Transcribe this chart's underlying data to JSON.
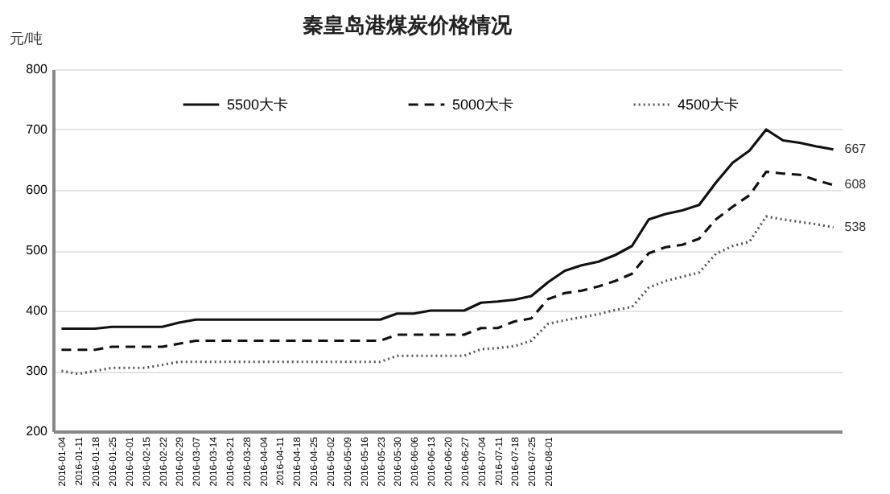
{
  "chart_data": {
    "type": "line",
    "title": "秦皇岛港煤炭价格情况",
    "ylabel": "元/吨",
    "categories": [
      "2016-01-04",
      "2016-01-11",
      "2016-01-18",
      "2016-01-25",
      "2016-02-01",
      "2016-02-15",
      "2016-02-22",
      "2016-02-29",
      "2016-03-07",
      "2016-03-14",
      "2016-03-21",
      "2016-03-28",
      "2016-04-04",
      "2016-04-11",
      "2016-04-18",
      "2016-04-25",
      "2016-05-02",
      "2016-05-09",
      "2016-05-16",
      "2016-05-23",
      "2016-05-30",
      "2016-06-06",
      "2016-06-13",
      "2016-06-20",
      "2016-06-27",
      "2016-07-04",
      "2016-07-11",
      "2016-07-18",
      "2016-07-25",
      "2016-08-01",
      null,
      null,
      null,
      null,
      null,
      null,
      null,
      null,
      null,
      null,
      null,
      null,
      null,
      null,
      null,
      null,
      null
    ],
    "series": [
      {
        "name": "5500大卡",
        "color": "#111111",
        "line_style": "solid",
        "values": [
          370,
          370,
          370,
          373,
          373,
          373,
          373,
          380,
          385,
          385,
          385,
          385,
          385,
          385,
          385,
          385,
          385,
          385,
          385,
          385,
          395,
          395,
          400,
          400,
          400,
          413,
          415,
          418,
          424,
          447,
          466,
          475,
          481,
          492,
          507,
          551,
          560,
          566,
          575,
          612,
          645,
          665,
          700,
          682,
          678,
          672,
          667
        ],
        "value_labels": [
          null,
          null,
          null,
          null,
          null,
          null,
          null,
          null,
          null,
          null,
          null,
          null,
          null,
          null,
          null,
          null,
          null,
          null,
          null,
          null,
          null,
          null,
          null,
          null,
          null,
          null,
          null,
          null,
          null,
          null,
          null,
          null,
          null,
          null,
          null,
          null,
          null,
          null,
          null,
          null,
          null,
          null,
          null,
          null,
          null,
          null,
          "667"
        ]
      },
      {
        "name": "5000大卡",
        "color": "#111111",
        "line_style": "dashed",
        "values": [
          335,
          335,
          335,
          340,
          340,
          340,
          340,
          345,
          350,
          350,
          350,
          350,
          350,
          350,
          350,
          350,
          350,
          350,
          350,
          350,
          360,
          360,
          360,
          360,
          360,
          371,
          371,
          382,
          387,
          419,
          429,
          433,
          440,
          449,
          461,
          495,
          505,
          509,
          519,
          551,
          572,
          591,
          630,
          627,
          625,
          616,
          608
        ],
        "value_labels": [
          null,
          null,
          null,
          null,
          null,
          null,
          null,
          null,
          null,
          null,
          null,
          null,
          null,
          null,
          null,
          null,
          null,
          null,
          null,
          null,
          null,
          null,
          null,
          null,
          null,
          null,
          null,
          null,
          null,
          null,
          null,
          null,
          null,
          null,
          null,
          null,
          null,
          null,
          null,
          null,
          null,
          null,
          null,
          null,
          null,
          null,
          "608"
        ]
      },
      {
        "name": "4500大卡",
        "color": "#555555",
        "line_style": "dotted",
        "values": [
          300,
          295,
          300,
          305,
          305,
          305,
          310,
          315,
          315,
          315,
          315,
          315,
          315,
          315,
          315,
          315,
          315,
          315,
          315,
          315,
          325,
          325,
          325,
          325,
          325,
          336,
          338,
          341,
          350,
          378,
          384,
          389,
          394,
          401,
          406,
          438,
          449,
          456,
          463,
          494,
          507,
          514,
          556,
          551,
          547,
          543,
          538
        ],
        "value_labels": [
          null,
          null,
          null,
          null,
          null,
          null,
          null,
          null,
          null,
          null,
          null,
          null,
          null,
          null,
          null,
          null,
          null,
          null,
          null,
          null,
          null,
          null,
          null,
          null,
          null,
          null,
          null,
          null,
          null,
          null,
          null,
          null,
          null,
          null,
          null,
          null,
          null,
          null,
          null,
          null,
          null,
          null,
          null,
          null,
          null,
          null,
          "538"
        ]
      }
    ],
    "ylim": [
      200,
      800
    ],
    "yticks": [
      200,
      300,
      400,
      500,
      600,
      700,
      800
    ],
    "grid": "y",
    "legend": "top"
  }
}
